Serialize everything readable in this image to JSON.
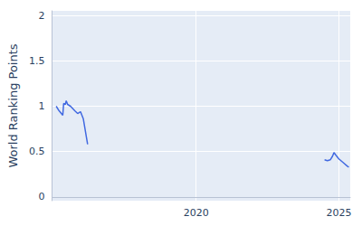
{
  "chart_data": {
    "type": "line",
    "y_label": "World Ranking Points",
    "x": [
      2015.1,
      2015.2,
      2015.33,
      2015.36,
      2015.42,
      2015.45,
      2015.5,
      2015.6,
      2015.75,
      2015.85,
      2015.95,
      2016.05,
      2016.2,
      2020,
      2024.5,
      2024.6,
      2024.7,
      2024.78,
      2024.83,
      2024.9,
      2025.0,
      2025.15,
      2025.3,
      2025.35
    ],
    "values": [
      1.0,
      0.95,
      0.9,
      1.03,
      1.02,
      1.06,
      1.02,
      1.0,
      0.95,
      0.92,
      0.94,
      0.86,
      0.58,
      null,
      0.41,
      0.4,
      0.41,
      0.45,
      0.49,
      0.46,
      0.42,
      0.38,
      0.34,
      0.33
    ],
    "color": "#4169e1",
    "xlim": [
      2014.95,
      2025.4
    ],
    "xticks": [
      2020,
      2025
    ],
    "ylim": [
      -0.04,
      2.05
    ],
    "yticks": [
      0,
      0.5,
      1,
      1.5,
      2
    ],
    "grid": true,
    "marker": "none",
    "line_style": "solid"
  }
}
